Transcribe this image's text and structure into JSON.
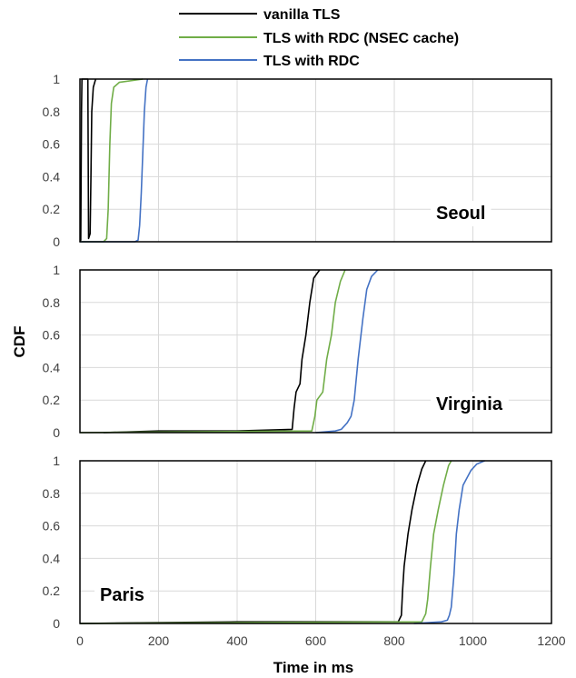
{
  "chart_data": {
    "type": "line",
    "xlabel": "Time in ms",
    "ylabel": "CDF",
    "xlim": [
      0,
      1200
    ],
    "ylim": [
      0,
      1
    ],
    "x_ticks": [
      "0",
      "200",
      "400",
      "600",
      "800",
      "1000",
      "1200"
    ],
    "y_ticks": [
      "0",
      "0.2",
      "0.4",
      "0.6",
      "0.8",
      "1"
    ],
    "grid": true,
    "legend_position": "top-center",
    "series_legend": [
      {
        "name": "vanilla TLS",
        "color": "#000000"
      },
      {
        "name": "TLS with RDC (NSEC cache)",
        "color": "#70ad47"
      },
      {
        "name": "TLS with RDC",
        "color": "#4472c4"
      }
    ],
    "panels": [
      {
        "label": "Seoul",
        "label_position": "right",
        "series": [
          {
            "name": "vanilla TLS",
            "color": "#000000",
            "points": [
              [
                0,
                0
              ],
              [
                2,
                0.01
              ],
              [
                4,
                0.8
              ],
              [
                5,
                1.0
              ],
              [
                6,
                1.0
              ],
              [
                20,
                1.0
              ],
              [
                22,
                0.02
              ],
              [
                26,
                0.05
              ],
              [
                28,
                0.4
              ],
              [
                30,
                0.8
              ],
              [
                34,
                0.95
              ],
              [
                40,
                1.0
              ]
            ]
          },
          {
            "name": "TLS with RDC (NSEC cache)",
            "color": "#70ad47",
            "points": [
              [
                0,
                0
              ],
              [
                60,
                0
              ],
              [
                68,
                0.02
              ],
              [
                72,
                0.2
              ],
              [
                76,
                0.6
              ],
              [
                80,
                0.85
              ],
              [
                86,
                0.95
              ],
              [
                100,
                0.98
              ],
              [
                160,
                1.0
              ]
            ]
          },
          {
            "name": "TLS with RDC",
            "color": "#4472c4",
            "points": [
              [
                0,
                0
              ],
              [
                140,
                0
              ],
              [
                148,
                0.01
              ],
              [
                152,
                0.1
              ],
              [
                156,
                0.3
              ],
              [
                160,
                0.55
              ],
              [
                164,
                0.8
              ],
              [
                168,
                0.95
              ],
              [
                172,
                1.0
              ]
            ]
          }
        ]
      },
      {
        "label": "Virginia",
        "label_position": "right",
        "series": [
          {
            "name": "vanilla TLS",
            "color": "#000000",
            "points": [
              [
                60,
                0
              ],
              [
                200,
                0.01
              ],
              [
                400,
                0.01
              ],
              [
                540,
                0.02
              ],
              [
                545,
                0.15
              ],
              [
                550,
                0.25
              ],
              [
                560,
                0.3
              ],
              [
                565,
                0.45
              ],
              [
                575,
                0.6
              ],
              [
                585,
                0.8
              ],
              [
                595,
                0.95
              ],
              [
                610,
                1.0
              ]
            ]
          },
          {
            "name": "TLS with RDC (NSEC cache)",
            "color": "#70ad47",
            "points": [
              [
                0,
                0
              ],
              [
                300,
                0.005
              ],
              [
                590,
                0.01
              ],
              [
                598,
                0.1
              ],
              [
                603,
                0.2
              ],
              [
                618,
                0.25
              ],
              [
                628,
                0.45
              ],
              [
                640,
                0.6
              ],
              [
                650,
                0.8
              ],
              [
                663,
                0.93
              ],
              [
                675,
                1.0
              ]
            ]
          },
          {
            "name": "TLS with RDC",
            "color": "#4472c4",
            "points": [
              [
                600,
                0
              ],
              [
                650,
                0.01
              ],
              [
                665,
                0.02
              ],
              [
                680,
                0.06
              ],
              [
                690,
                0.1
              ],
              [
                698,
                0.2
              ],
              [
                708,
                0.45
              ],
              [
                720,
                0.7
              ],
              [
                730,
                0.88
              ],
              [
                742,
                0.96
              ],
              [
                758,
                1.0
              ]
            ]
          }
        ]
      },
      {
        "label": "Paris",
        "label_position": "left",
        "series": [
          {
            "name": "vanilla TLS",
            "color": "#000000",
            "points": [
              [
                0,
                0
              ],
              [
                400,
                0.01
              ],
              [
                810,
                0.01
              ],
              [
                818,
                0.05
              ],
              [
                821,
                0.2
              ],
              [
                825,
                0.35
              ],
              [
                835,
                0.55
              ],
              [
                845,
                0.7
              ],
              [
                858,
                0.85
              ],
              [
                870,
                0.95
              ],
              [
                880,
                1.0
              ]
            ]
          },
          {
            "name": "TLS with RDC (NSEC cache)",
            "color": "#70ad47",
            "points": [
              [
                0,
                0
              ],
              [
                400,
                0.005
              ],
              [
                870,
                0.01
              ],
              [
                880,
                0.06
              ],
              [
                885,
                0.15
              ],
              [
                892,
                0.35
              ],
              [
                900,
                0.55
              ],
              [
                912,
                0.7
              ],
              [
                925,
                0.85
              ],
              [
                938,
                0.97
              ],
              [
                945,
                1.0
              ]
            ]
          },
          {
            "name": "TLS with RDC",
            "color": "#4472c4",
            "points": [
              [
                850,
                0
              ],
              [
                920,
                0.01
              ],
              [
                935,
                0.02
              ],
              [
                940,
                0.05
              ],
              [
                945,
                0.1
              ],
              [
                952,
                0.3
              ],
              [
                958,
                0.55
              ],
              [
                965,
                0.7
              ],
              [
                975,
                0.85
              ],
              [
                995,
                0.94
              ],
              [
                1010,
                0.98
              ],
              [
                1030,
                1.0
              ]
            ]
          }
        ]
      }
    ]
  }
}
